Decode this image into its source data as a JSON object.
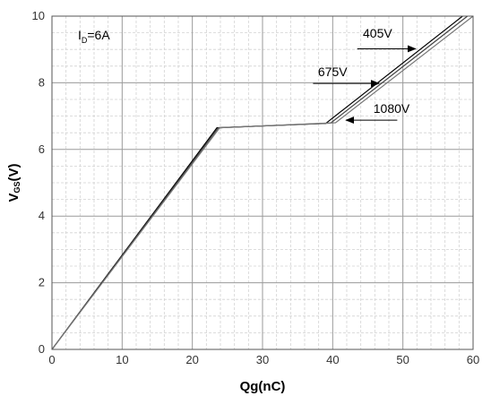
{
  "chart_data": {
    "type": "line",
    "xlabel": "Qg(nC)",
    "ylabel_main": "V",
    "ylabel_sub": "GS",
    "ylabel_tail": "(V)",
    "xlim": [
      0,
      60
    ],
    "ylim": [
      0,
      10
    ],
    "x_ticks": [
      0,
      10,
      20,
      30,
      40,
      50,
      60
    ],
    "y_ticks": [
      0,
      2,
      4,
      6,
      8,
      10
    ],
    "x_tick_labels": [
      "0",
      "10",
      "20",
      "30",
      "40",
      "50",
      "60"
    ],
    "y_tick_labels": [
      "0",
      "2",
      "4",
      "6",
      "8",
      "10"
    ],
    "grid": true,
    "condition": {
      "main": "I",
      "sub": "D",
      "tail": "=6A"
    },
    "series": [
      {
        "name": "405V",
        "color": "#000000",
        "x": [
          0,
          23.5,
          39.0,
          58.5
        ],
        "y": [
          0,
          6.65,
          6.78,
          10
        ]
      },
      {
        "name": "675V",
        "color": "#444444",
        "x": [
          0,
          23.7,
          39.7,
          59.2
        ],
        "y": [
          0,
          6.65,
          6.79,
          10
        ]
      },
      {
        "name": "1080V",
        "color": "#777777",
        "x": [
          0,
          23.9,
          40.4,
          60.0
        ],
        "y": [
          0,
          6.65,
          6.8,
          10
        ]
      }
    ],
    "annotations": [
      {
        "label": "405V",
        "text_x": 44.3,
        "text_y": 9.35,
        "arrow_from": [
          43.5,
          9.02
        ],
        "arrow_to": [
          51.8,
          9.02
        ]
      },
      {
        "label": "675V",
        "text_x": 37.9,
        "text_y": 8.2,
        "arrow_from": [
          37.2,
          7.98
        ],
        "arrow_to": [
          46.6,
          7.98
        ]
      },
      {
        "label": "1080V",
        "text_x": 45.8,
        "text_y": 7.1,
        "arrow_from": [
          49.2,
          6.88
        ],
        "arrow_to": [
          41.9,
          6.88
        ]
      }
    ]
  }
}
